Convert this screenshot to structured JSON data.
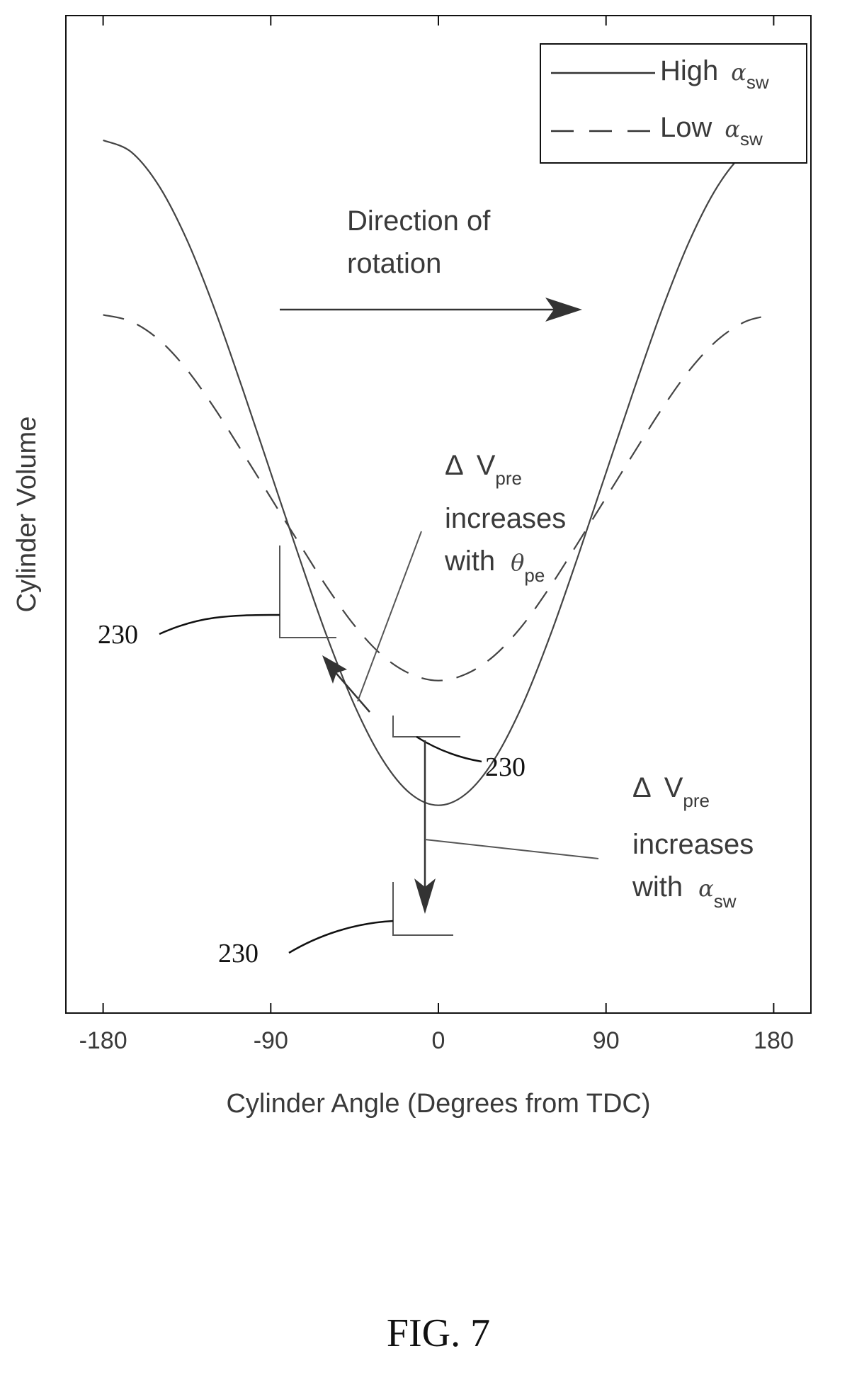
{
  "chart_data": {
    "type": "line",
    "xlabel": "Cylinder Angle (Degrees from TDC)",
    "ylabel": "Cylinder Volume",
    "xlim": [
      -200,
      200
    ],
    "ylim": [
      0,
      1.2
    ],
    "xticks": [
      -180,
      -90,
      0,
      90,
      180
    ],
    "xtick_labels": [
      "-180",
      "-90",
      "0",
      "90",
      "180"
    ],
    "legend_position": "top-right",
    "grid": false,
    "series": [
      {
        "name_text": "High",
        "name_symbol": "α",
        "name_sub": "sw",
        "style": "solid",
        "x": [
          -180,
          -165,
          -150,
          -135,
          -120,
          -105,
          -90,
          -75,
          -60,
          -45,
          -30,
          -15,
          0,
          15,
          30,
          45,
          60,
          75,
          90,
          105,
          120,
          135,
          150,
          165,
          180
        ],
        "y": [
          1.05,
          1.036,
          0.995,
          0.93,
          0.846,
          0.75,
          0.65,
          0.55,
          0.454,
          0.37,
          0.305,
          0.264,
          0.25,
          0.264,
          0.305,
          0.37,
          0.454,
          0.55,
          0.65,
          0.75,
          0.846,
          0.93,
          0.995,
          1.036,
          1.05
        ]
      },
      {
        "name_text": "Low",
        "name_symbol": "α",
        "name_sub": "sw",
        "style": "dashed",
        "x": [
          -180,
          -165,
          -150,
          -135,
          -120,
          -105,
          -90,
          -75,
          -60,
          -45,
          -30,
          -15,
          0,
          15,
          30,
          45,
          60,
          75,
          90,
          105,
          120,
          135,
          150,
          165,
          180
        ],
        "y": [
          0.84,
          0.832,
          0.81,
          0.774,
          0.727,
          0.674,
          0.62,
          0.566,
          0.513,
          0.466,
          0.43,
          0.408,
          0.4,
          0.408,
          0.43,
          0.466,
          0.513,
          0.566,
          0.62,
          0.674,
          0.727,
          0.774,
          0.81,
          0.832,
          0.84
        ]
      }
    ],
    "annotations": {
      "direction_line1": "Direction of",
      "direction_line2": "rotation",
      "delta_symbol": "Δ",
      "v_symbol": "V",
      "pre_sub": "pre",
      "increases": "increases",
      "with": "with",
      "theta_symbol": "θ",
      "pe_sub": "pe",
      "alpha_symbol": "α",
      "sw_sub": "sw",
      "ref_1": "230",
      "ref_2": "230",
      "ref_3": "230"
    }
  },
  "caption": "FIG. 7"
}
